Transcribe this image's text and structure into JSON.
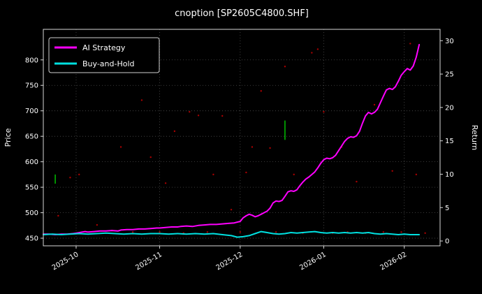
{
  "chart": {
    "title": "cnoption [SP2605C4800.SHF]",
    "colors": {
      "background": "#000000",
      "text": "#ffffff",
      "grid": "#4d4d4d",
      "spine": "#d9d9d9",
      "ai_strategy": "#ff00ff",
      "buy_and_hold": "#00e0e0",
      "scatter_dots": "#aa0000",
      "event_marks": "#00b300"
    },
    "legend": [
      {
        "label": "AI Strategy",
        "color": "#ff00ff"
      },
      {
        "label": "Buy-and-Hold",
        "color": "#00e0e0"
      }
    ]
  },
  "chart_data": {
    "type": "line",
    "title": "cnoption [SP2605C4800.SHF]",
    "xlabel": "",
    "ylabel_left": "Price",
    "ylabel_right": "Return",
    "x_domain": [
      0,
      133
    ],
    "x_ticks": [
      {
        "day": 11,
        "label": "2025-10"
      },
      {
        "day": 39,
        "label": "2025-11"
      },
      {
        "day": 66,
        "label": "2025-12"
      },
      {
        "day": 94,
        "label": "2026-01"
      },
      {
        "day": 121,
        "label": "2026-02"
      }
    ],
    "y_left": {
      "domain": [
        435,
        860
      ],
      "ticks": [
        450,
        500,
        550,
        600,
        650,
        700,
        750,
        800
      ]
    },
    "y_right": {
      "ticks": [
        0,
        5,
        10,
        15,
        20,
        25,
        30
      ],
      "price_at_zero": 444.5,
      "price_per_unit": 13.107
    },
    "grid": true,
    "legend_position": "upper-left",
    "series": [
      {
        "name": "AI Strategy",
        "color": "#ff00ff",
        "width": 2,
        "points": [
          [
            0,
            458
          ],
          [
            2,
            458
          ],
          [
            4,
            457
          ],
          [
            6,
            458
          ],
          [
            8,
            458
          ],
          [
            10,
            459
          ],
          [
            11,
            460
          ],
          [
            13,
            462
          ],
          [
            14,
            463
          ],
          [
            15,
            462
          ],
          [
            17,
            463
          ],
          [
            19,
            464
          ],
          [
            21,
            464
          ],
          [
            23,
            465
          ],
          [
            25,
            464
          ],
          [
            26,
            466
          ],
          [
            28,
            467
          ],
          [
            30,
            467
          ],
          [
            32,
            468
          ],
          [
            34,
            468
          ],
          [
            36,
            469
          ],
          [
            38,
            470
          ],
          [
            39,
            470
          ],
          [
            41,
            471
          ],
          [
            43,
            472
          ],
          [
            45,
            472
          ],
          [
            46,
            473
          ],
          [
            48,
            474
          ],
          [
            50,
            473
          ],
          [
            52,
            475
          ],
          [
            54,
            476
          ],
          [
            56,
            477
          ],
          [
            58,
            477
          ],
          [
            60,
            478
          ],
          [
            62,
            479
          ],
          [
            64,
            480
          ],
          [
            66,
            483
          ],
          [
            67,
            490
          ],
          [
            68,
            494
          ],
          [
            69,
            497
          ],
          [
            70,
            495
          ],
          [
            71,
            492
          ],
          [
            72,
            494
          ],
          [
            73,
            497
          ],
          [
            74,
            500
          ],
          [
            75,
            503
          ],
          [
            76,
            509
          ],
          [
            77,
            519
          ],
          [
            78,
            523
          ],
          [
            79,
            522
          ],
          [
            80,
            524
          ],
          [
            81,
            532
          ],
          [
            82,
            541
          ],
          [
            83,
            543
          ],
          [
            84,
            542
          ],
          [
            85,
            545
          ],
          [
            86,
            553
          ],
          [
            87,
            560
          ],
          [
            88,
            566
          ],
          [
            89,
            570
          ],
          [
            90,
            575
          ],
          [
            91,
            580
          ],
          [
            92,
            588
          ],
          [
            93,
            597
          ],
          [
            94,
            604
          ],
          [
            95,
            607
          ],
          [
            96,
            606
          ],
          [
            97,
            608
          ],
          [
            98,
            613
          ],
          [
            99,
            622
          ],
          [
            100,
            631
          ],
          [
            101,
            640
          ],
          [
            102,
            646
          ],
          [
            103,
            649
          ],
          [
            104,
            648
          ],
          [
            105,
            651
          ],
          [
            106,
            660
          ],
          [
            107,
            676
          ],
          [
            108,
            690
          ],
          [
            109,
            697
          ],
          [
            110,
            694
          ],
          [
            111,
            697
          ],
          [
            112,
            703
          ],
          [
            113,
            716
          ],
          [
            114,
            729
          ],
          [
            115,
            741
          ],
          [
            116,
            744
          ],
          [
            117,
            742
          ],
          [
            118,
            747
          ],
          [
            119,
            758
          ],
          [
            120,
            770
          ],
          [
            121,
            777
          ],
          [
            122,
            783
          ],
          [
            123,
            780
          ],
          [
            124,
            788
          ],
          [
            125,
            805
          ],
          [
            126,
            830
          ]
        ]
      },
      {
        "name": "Buy-and-Hold",
        "color": "#00e0e0",
        "width": 2,
        "points": [
          [
            0,
            457
          ],
          [
            3,
            458
          ],
          [
            6,
            457
          ],
          [
            9,
            458
          ],
          [
            12,
            459
          ],
          [
            15,
            458
          ],
          [
            18,
            459
          ],
          [
            21,
            460
          ],
          [
            24,
            459
          ],
          [
            27,
            458
          ],
          [
            30,
            459
          ],
          [
            33,
            458
          ],
          [
            36,
            459
          ],
          [
            39,
            459
          ],
          [
            42,
            458
          ],
          [
            45,
            459
          ],
          [
            48,
            458
          ],
          [
            51,
            459
          ],
          [
            54,
            458
          ],
          [
            57,
            459
          ],
          [
            60,
            457
          ],
          [
            63,
            455
          ],
          [
            65,
            452
          ],
          [
            67,
            453
          ],
          [
            69,
            455
          ],
          [
            71,
            459
          ],
          [
            73,
            463
          ],
          [
            75,
            461
          ],
          [
            77,
            459
          ],
          [
            79,
            458
          ],
          [
            81,
            459
          ],
          [
            83,
            461
          ],
          [
            85,
            460
          ],
          [
            87,
            461
          ],
          [
            89,
            462
          ],
          [
            91,
            463
          ],
          [
            93,
            461
          ],
          [
            95,
            460
          ],
          [
            97,
            461
          ],
          [
            99,
            460
          ],
          [
            101,
            461
          ],
          [
            103,
            460
          ],
          [
            105,
            461
          ],
          [
            107,
            460
          ],
          [
            109,
            461
          ],
          [
            111,
            459
          ],
          [
            113,
            458
          ],
          [
            115,
            459
          ],
          [
            117,
            458
          ],
          [
            119,
            457
          ],
          [
            121,
            458
          ],
          [
            123,
            457
          ],
          [
            126,
            457
          ]
        ]
      }
    ],
    "scatter": {
      "name": "daily-marks",
      "color": "#aa0000",
      "radius": 1.2,
      "points": [
        [
          5,
          494
        ],
        [
          9,
          569
        ],
        [
          12,
          575
        ],
        [
          18,
          476
        ],
        [
          20,
          788
        ],
        [
          23,
          465
        ],
        [
          26,
          629
        ],
        [
          30,
          462
        ],
        [
          33,
          721
        ],
        [
          36,
          609
        ],
        [
          39,
          462
        ],
        [
          41,
          558
        ],
        [
          44,
          660
        ],
        [
          47,
          460
        ],
        [
          49,
          698
        ],
        [
          52,
          691
        ],
        [
          55,
          462
        ],
        [
          57,
          575
        ],
        [
          60,
          690
        ],
        [
          63,
          506
        ],
        [
          66,
          462
        ],
        [
          68,
          579
        ],
        [
          70,
          629
        ],
        [
          73,
          739
        ],
        [
          76,
          627
        ],
        [
          78,
          462
        ],
        [
          81,
          787
        ],
        [
          84,
          575
        ],
        [
          87,
          460
        ],
        [
          90,
          814
        ],
        [
          92,
          821
        ],
        [
          94,
          698
        ],
        [
          97,
          460
        ],
        [
          100,
          629
        ],
        [
          102,
          462
        ],
        [
          105,
          561
        ],
        [
          108,
          460
        ],
        [
          111,
          712
        ],
        [
          114,
          462
        ],
        [
          117,
          582
        ],
        [
          120,
          462
        ],
        [
          123,
          832
        ],
        [
          125,
          575
        ],
        [
          128,
          460
        ]
      ]
    },
    "event_bars": [
      {
        "day": 4,
        "from": 557,
        "to": 575
      },
      {
        "day": 81,
        "from": 643,
        "to": 681
      }
    ],
    "event_color": "#00b300"
  }
}
